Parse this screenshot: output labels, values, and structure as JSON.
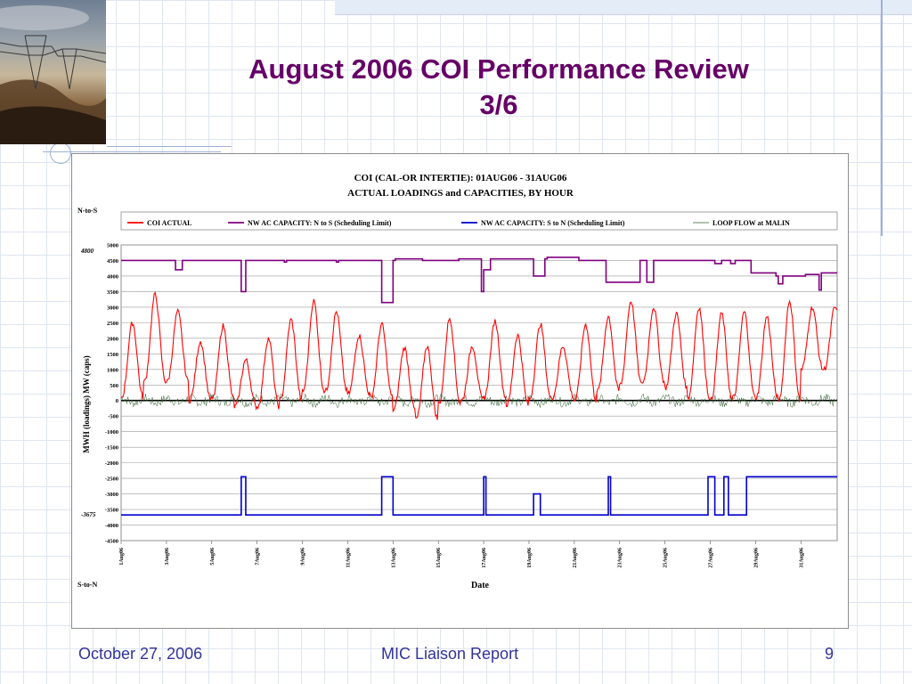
{
  "slide": {
    "title_line1": "August 2006 COI Performance Review",
    "title_line2": "3/6",
    "footer_date": "October 27, 2006",
    "footer_center": "MIC Liaison Report",
    "page_number": "9"
  },
  "colors": {
    "title": "#660066",
    "coi_actual": "#ff0000",
    "nw_n_to_s": "#800080",
    "nw_s_to_n": "#0000cc",
    "loop_flow": "#2f5f2f",
    "footer": "#333399"
  },
  "chart_data": {
    "type": "line",
    "title_line1": "COI (CAL-OR INTERTIE): 01AUG06 - 31AUG06",
    "title_line2": "ACTUAL LOADINGS and CAPACITIES, BY HOUR",
    "ylabel": "MWH (loadings)   MW (caps)",
    "xlabel": "Date",
    "label_top": "N-to-S",
    "label_bottom": "S-to-N",
    "marker_top": "4800",
    "marker_bottom": "-3675",
    "ylim": [
      -4500,
      5000
    ],
    "y_ticks": [
      5000,
      4500,
      4000,
      3500,
      3000,
      2500,
      2000,
      1500,
      1000,
      500,
      0,
      -500,
      -1000,
      -1500,
      -2000,
      -2500,
      -3000,
      -3500,
      -4000,
      -4500
    ],
    "x_ticks": [
      "1Aug06",
      "3Aug06",
      "5Aug06",
      "7Aug06",
      "9Aug06",
      "11Aug06",
      "13Aug06",
      "15Aug06",
      "17Aug06",
      "19Aug06",
      "21Aug06",
      "23Aug06",
      "25Aug06",
      "27Aug06",
      "29Aug06",
      "31Aug06"
    ],
    "legend_position": "top",
    "grid": true,
    "series": [
      {
        "name": "COI ACTUAL",
        "color": "#ff0000",
        "daily_peak": [
          2500,
          3400,
          2850,
          1900,
          2400,
          1300,
          2000,
          2600,
          3200,
          2850,
          2100,
          2450,
          1700,
          1750,
          2650,
          1750,
          2550,
          2100,
          2450,
          1750,
          2450,
          2700,
          3200,
          3000,
          2800,
          3000,
          2800,
          2850,
          2700,
          3200,
          3000
        ],
        "daily_min": [
          100,
          600,
          600,
          0,
          50,
          -200,
          -200,
          0,
          300,
          300,
          200,
          100,
          -300,
          -600,
          -100,
          0,
          100,
          -150,
          50,
          100,
          0,
          300,
          500,
          600,
          400,
          100,
          0,
          100,
          100,
          0,
          1000
        ]
      },
      {
        "name": "NW AC CAPACITY: N to S (Scheduling Limit)",
        "color": "#800080",
        "segments": [
          [
            1,
            4500
          ],
          [
            3.4,
            4200
          ],
          [
            3.7,
            4500
          ],
          [
            6.3,
            3500
          ],
          [
            6.5,
            4500
          ],
          [
            8.2,
            4450
          ],
          [
            8.3,
            4500
          ],
          [
            10.5,
            4450
          ],
          [
            10.6,
            4500
          ],
          [
            12.5,
            3150
          ],
          [
            13,
            4500
          ],
          [
            13.1,
            4550
          ],
          [
            14.3,
            4500
          ],
          [
            15.9,
            4550
          ],
          [
            16.9,
            3500
          ],
          [
            17,
            4200
          ],
          [
            17.3,
            4550
          ],
          [
            19.2,
            4000
          ],
          [
            19.7,
            4550
          ],
          [
            19.8,
            4600
          ],
          [
            21.2,
            4500
          ],
          [
            22.4,
            3800
          ],
          [
            23.9,
            4500
          ],
          [
            24.2,
            3800
          ],
          [
            24.5,
            4500
          ],
          [
            27.2,
            4400
          ],
          [
            27.5,
            4500
          ],
          [
            27.9,
            4400
          ],
          [
            28.1,
            4500
          ],
          [
            28.8,
            4100
          ],
          [
            29.9,
            4000
          ],
          [
            30,
            3750
          ],
          [
            30.2,
            4000
          ],
          [
            31.2,
            4050
          ],
          [
            31.8,
            3550
          ],
          [
            31.9,
            4100
          ],
          [
            32.6,
            4100
          ]
        ]
      },
      {
        "name": "NW AC CAPACITY: S to N (Scheduling Limit)",
        "color": "#0000cc",
        "segments": [
          [
            1,
            -3675
          ],
          [
            6.3,
            -2450
          ],
          [
            6.5,
            -3675
          ],
          [
            12.5,
            -2450
          ],
          [
            13,
            -3675
          ],
          [
            17,
            -2450
          ],
          [
            17.1,
            -3675
          ],
          [
            19.2,
            -3000
          ],
          [
            19.5,
            -3675
          ],
          [
            22.5,
            -2450
          ],
          [
            22.6,
            -3675
          ],
          [
            26.9,
            -2450
          ],
          [
            27.2,
            -3675
          ],
          [
            27.6,
            -2450
          ],
          [
            27.8,
            -3675
          ],
          [
            28.6,
            -2450
          ],
          [
            32.6,
            -2450
          ]
        ]
      },
      {
        "name": "LOOP FLOW at MALIN",
        "color": "#2f5f2f",
        "range": [
          -600,
          500
        ]
      }
    ]
  }
}
